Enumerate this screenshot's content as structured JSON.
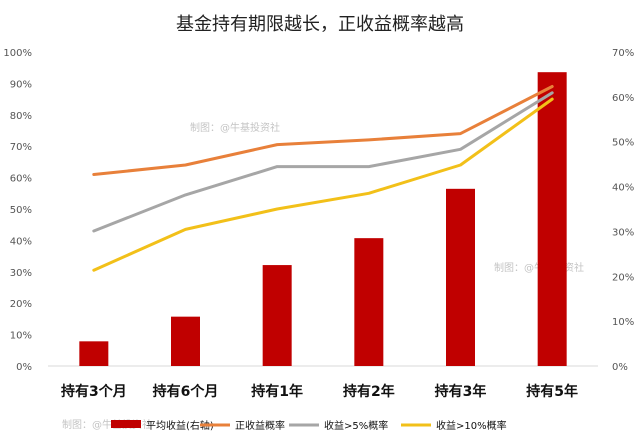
{
  "chart_data": {
    "type": "bar+line",
    "title": "基金持有期限越长，正收益概率越高",
    "categories": [
      "持有3个月",
      "持有6个月",
      "持有1年",
      "持有2年",
      "持有3年",
      "持有5年"
    ],
    "left_axis": {
      "ylim": [
        0,
        100
      ],
      "ticks": [
        "0%",
        "10%",
        "20%",
        "30%",
        "40%",
        "50%",
        "60%",
        "70%",
        "80%",
        "90%",
        "100%"
      ]
    },
    "right_axis": {
      "ylim": [
        0,
        70
      ],
      "ticks": [
        "0%",
        "10%",
        "20%",
        "30%",
        "40%",
        "50%",
        "60%",
        "70%"
      ]
    },
    "series": [
      {
        "name": "平均收益(右轴)",
        "kind": "bar",
        "axis": "right",
        "color": "#c00000",
        "values": [
          5.5,
          11,
          22.5,
          28.5,
          39.5,
          65.5
        ]
      },
      {
        "name": "正收益概率",
        "kind": "line",
        "axis": "left",
        "color": "#e8803a",
        "values": [
          61,
          64,
          70.5,
          72,
          74,
          89
        ]
      },
      {
        "name": "收益>5%概率",
        "kind": "line",
        "axis": "left",
        "color": "#a6a6a6",
        "values": [
          43,
          54.5,
          63.5,
          63.5,
          69,
          87
        ]
      },
      {
        "name": "收益>10%概率",
        "kind": "line",
        "axis": "left",
        "color": "#f2c019",
        "values": [
          30.5,
          43.5,
          50,
          55,
          64,
          85
        ]
      }
    ],
    "watermarks": [
      "制图：@牛基投资社",
      "制图：@牛基投资社",
      "制图：@牛基投资社"
    ],
    "grid": false,
    "legend_position": "bottom"
  }
}
